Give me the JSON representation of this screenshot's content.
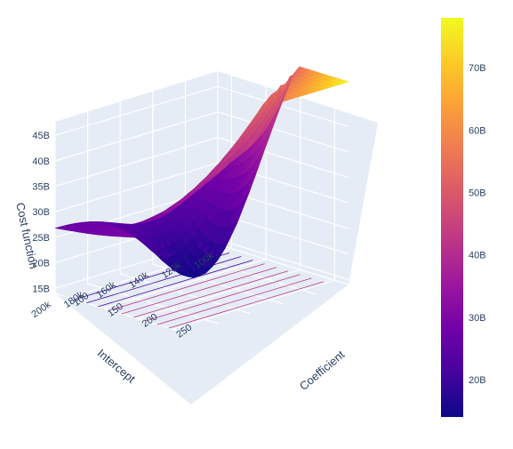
{
  "chart_data": {
    "type": "surface",
    "title": "",
    "axes": {
      "x": {
        "label": "Coefficient",
        "range": [
          80,
          270
        ],
        "ticks": [
          100,
          150,
          200,
          250
        ],
        "tick_labels": [
          "100",
          "150",
          "200",
          "250"
        ]
      },
      "y": {
        "label": "Intercept",
        "range": [
          100000,
          200000
        ],
        "ticks": [
          100000,
          120000,
          140000,
          160000,
          180000,
          200000
        ],
        "tick_labels": [
          "100k",
          "120k",
          "140k",
          "160k",
          "180k",
          "200k"
        ]
      },
      "z": {
        "label": "Cost function",
        "range": [
          14000000000,
          48000000000
        ],
        "ticks": [
          15000000000,
          20000000000,
          25000000000,
          30000000000,
          35000000000,
          40000000000,
          45000000000
        ],
        "tick_labels": [
          "15B",
          "20B",
          "25B",
          "30B",
          "35B",
          "40B",
          "45B"
        ]
      }
    },
    "surface": {
      "x": [
        80,
        270
      ],
      "y": [
        100000,
        200000
      ],
      "z_min": 14000000000,
      "z_max": 78000000000,
      "corner_values": {
        "coef_80_int_100k": 29000000000,
        "coef_270_int_100k": 78000000000,
        "coef_80_int_200k": 27000000000,
        "coef_270_int_200k": 32000000000
      },
      "minimum": {
        "coefficient": 140,
        "intercept": 140000,
        "value": 14000000000
      }
    },
    "colorbar": {
      "colorscale": "plasma",
      "range": [
        14000000000,
        78000000000
      ],
      "ticks": [
        20000000000,
        30000000000,
        40000000000,
        50000000000,
        60000000000,
        70000000000
      ],
      "tick_labels": [
        "20B",
        "30B",
        "40B",
        "50B",
        "60B",
        "70B"
      ]
    },
    "projected_contours": "z (floor)",
    "grid": true,
    "background_color": "#e5ecf6"
  }
}
